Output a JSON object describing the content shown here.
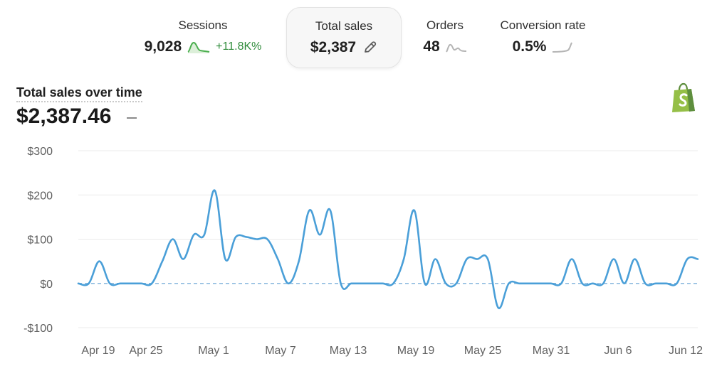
{
  "metrics": {
    "sessions": {
      "label": "Sessions",
      "value": "9,028",
      "delta": "+11.8K%"
    },
    "total_sales": {
      "label": "Total sales",
      "value": "$2,387"
    },
    "orders": {
      "label": "Orders",
      "value": "48"
    },
    "conversion": {
      "label": "Conversion rate",
      "value": "0.5%"
    }
  },
  "chart_header": {
    "title": "Total sales over time",
    "total": "$2,387.46"
  },
  "icons": {
    "edit": "pencil-icon",
    "brand": "shopify-bag-icon"
  },
  "colors": {
    "line": "#4a9fd8",
    "zero_line": "#8ab8de",
    "sparkline_green": "#4caf50",
    "sparkline_gray": "#b5b5b5",
    "brand": "#95bf47"
  },
  "chart_data": {
    "type": "line",
    "title": "Total sales over time",
    "x_start": "Apr 19",
    "x_end": "Jun 12",
    "xticks": [
      "Apr 19",
      "Apr 25",
      "May 1",
      "May 7",
      "May 13",
      "May 19",
      "May 25",
      "May 31",
      "Jun 6",
      "Jun 12"
    ],
    "yticks": [
      300,
      200,
      100,
      0,
      -100
    ],
    "ytick_labels": [
      "$300",
      "$200",
      "$100",
      "$0",
      "-$100"
    ],
    "ylim": [
      -100,
      300
    ],
    "grid": true,
    "series": [
      {
        "values": [
          0,
          0,
          50,
          0,
          0,
          0,
          0,
          0,
          50,
          100,
          55,
          110,
          110,
          210,
          55,
          105,
          105,
          100,
          100,
          55,
          0,
          50,
          165,
          110,
          165,
          0,
          0,
          0,
          0,
          0,
          0,
          55,
          165,
          0,
          55,
          0,
          0,
          55,
          55,
          55,
          -55,
          0,
          0,
          0,
          0,
          0,
          0,
          55,
          0,
          0,
          0,
          55,
          0,
          55,
          0,
          0,
          0,
          0,
          55,
          55
        ]
      }
    ]
  }
}
